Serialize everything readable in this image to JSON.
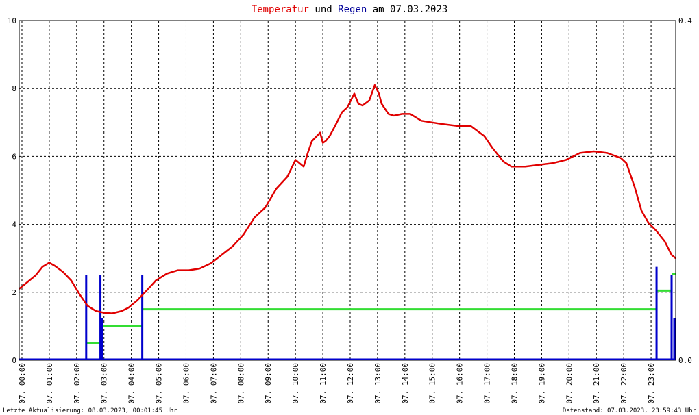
{
  "title": {
    "part1": "Temperatur",
    "part2": " und ",
    "part3": "Regen",
    "part4": " am 07.03.2023"
  },
  "colors": {
    "temperature": "#e00000",
    "rain_bars": "#0000cc",
    "rain_sum": "#33dd33",
    "title_temp": "#e00000",
    "title_rain": "#000099"
  },
  "footer": {
    "left": "Letzte Aktualisierung: 08.03.2023, 00:01:45 Uhr",
    "right": "Datenstand: 07.03.2023, 23:59:43 Uhr"
  },
  "chart_data": {
    "type": "line",
    "grid": true,
    "x_range_hours": [
      0,
      24
    ],
    "y_left": {
      "range": [
        0,
        10
      ],
      "ticks": [
        "0",
        "2",
        "4",
        "6",
        "8",
        "10"
      ],
      "tick_values": [
        0,
        2,
        4,
        6,
        8,
        10
      ]
    },
    "y_right": {
      "range": [
        0,
        0.4
      ],
      "ticks": [
        "0.0",
        "0.4"
      ],
      "tick_values": [
        0,
        0.4
      ]
    },
    "x_tick_labels": [
      "07. 00:00",
      "07. 01:00",
      "07. 02:00",
      "07. 03:00",
      "07. 04:00",
      "07. 05:00",
      "07. 06:00",
      "07. 07:00",
      "07. 08:00",
      "07. 09:00",
      "07. 10:00",
      "07. 11:00",
      "07. 12:00",
      "07. 13:00",
      "07. 14:00",
      "07. 15:00",
      "07. 16:00",
      "07. 17:00",
      "07. 18:00",
      "07. 19:00",
      "07. 20:00",
      "07. 21:00",
      "07. 22:00",
      "07. 23:00"
    ],
    "x_tick_hours": [
      0.1,
      1.1,
      2.1,
      3.1,
      4.1,
      5.1,
      6.1,
      7.1,
      8.1,
      9.1,
      10.1,
      11.1,
      12.1,
      13.1,
      14.1,
      15.1,
      16.1,
      17.1,
      18.1,
      19.1,
      20.1,
      21.1,
      22.1,
      23.1
    ],
    "temperature": {
      "hours": [
        0.0,
        0.3,
        0.6,
        0.85,
        1.1,
        1.3,
        1.6,
        1.9,
        2.2,
        2.5,
        2.8,
        3.1,
        3.4,
        3.75,
        4.0,
        4.3,
        4.6,
        5.0,
        5.4,
        5.8,
        6.2,
        6.6,
        7.0,
        7.4,
        7.8,
        8.2,
        8.6,
        9.0,
        9.4,
        9.8,
        10.1,
        10.4,
        10.55,
        10.7,
        11.0,
        11.1,
        11.2,
        11.35,
        11.55,
        11.8,
        12.0,
        12.25,
        12.4,
        12.55,
        12.8,
        13.0,
        13.15,
        13.25,
        13.5,
        13.7,
        14.0,
        14.3,
        14.7,
        15.1,
        15.5,
        16.0,
        16.5,
        17.0,
        17.3,
        17.7,
        18.0,
        18.5,
        19.0,
        19.5,
        20.0,
        20.5,
        21.0,
        21.5,
        22.0,
        22.2,
        22.5,
        22.75,
        23.0,
        23.3,
        23.6,
        23.85,
        24.0
      ],
      "values": [
        2.1,
        2.3,
        2.5,
        2.75,
        2.87,
        2.78,
        2.6,
        2.35,
        1.95,
        1.6,
        1.45,
        1.4,
        1.38,
        1.45,
        1.55,
        1.75,
        2.0,
        2.35,
        2.55,
        2.65,
        2.65,
        2.7,
        2.85,
        3.1,
        3.35,
        3.7,
        4.2,
        4.5,
        5.05,
        5.4,
        5.9,
        5.7,
        6.1,
        6.45,
        6.7,
        6.4,
        6.45,
        6.6,
        6.9,
        7.3,
        7.45,
        7.85,
        7.55,
        7.5,
        7.65,
        8.1,
        7.85,
        7.55,
        7.25,
        7.2,
        7.25,
        7.25,
        7.05,
        7.0,
        6.95,
        6.9,
        6.9,
        6.6,
        6.25,
        5.85,
        5.7,
        5.7,
        5.75,
        5.8,
        5.9,
        6.1,
        6.15,
        6.1,
        5.95,
        5.8,
        5.1,
        4.4,
        4.05,
        3.8,
        3.5,
        3.1,
        3.0
      ]
    },
    "rain_bars": {
      "hours": [
        2.45,
        2.97,
        3.03,
        4.5,
        23.3,
        23.85,
        23.95
      ],
      "values": [
        0.1,
        0.1,
        0.05,
        0.1,
        0.11,
        0.1,
        0.05
      ]
    },
    "rain_sum": {
      "segments": [
        {
          "from": 2.45,
          "to": 2.97,
          "value": 0.02
        },
        {
          "from": 3.03,
          "to": 4.5,
          "value": 0.04
        },
        {
          "from": 4.5,
          "to": 23.3,
          "value": 0.06
        },
        {
          "from": 23.3,
          "to": 23.85,
          "value": 0.082
        },
        {
          "from": 23.85,
          "to": 24.0,
          "value": 0.102
        }
      ]
    }
  }
}
